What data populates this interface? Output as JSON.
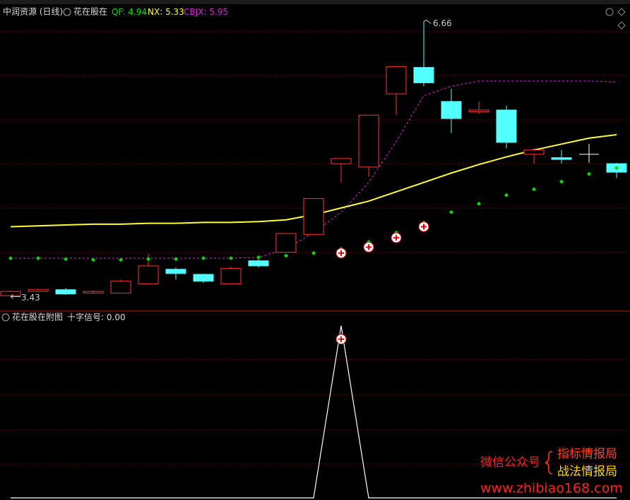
{
  "chart_data": [
    {
      "type": "candlestick",
      "title": "中润资源 (日线)",
      "subtitle": "花在股在",
      "open": [
        3.44,
        3.49,
        3.51,
        3.47,
        3.47,
        3.58,
        3.75,
        3.69,
        3.58,
        3.85,
        3.95,
        4.16,
        4.99,
        4.95,
        5.81,
        6.12,
        5.72,
        5.6,
        5.62,
        5.1,
        5.06,
        5.1,
        4.99
      ],
      "high": [
        3.5,
        3.52,
        3.53,
        3.5,
        3.63,
        3.93,
        3.77,
        3.7,
        3.78,
        3.87,
        4.17,
        4.58,
        5.05,
        5.56,
        6.13,
        6.66,
        5.87,
        5.72,
        5.67,
        5.17,
        5.15,
        5.22,
        5.0
      ],
      "low": [
        3.43,
        3.48,
        3.45,
        3.46,
        3.47,
        3.58,
        3.63,
        3.59,
        3.58,
        3.77,
        3.95,
        4.16,
        4.77,
        4.84,
        5.56,
        5.9,
        5.35,
        5.57,
        5.17,
        4.99,
        4.99,
        5.0,
        4.82
      ],
      "close": [
        3.49,
        3.51,
        3.46,
        3.49,
        3.61,
        3.79,
        3.7,
        3.61,
        3.76,
        3.79,
        4.17,
        4.58,
        5.05,
        5.56,
        6.13,
        5.94,
        5.52,
        5.62,
        5.24,
        5.15,
        5.04,
        5.1,
        4.89
      ],
      "up_color": "#ff3232",
      "down_color": "#54ffff",
      "flat_color": "#ffffff",
      "ylim": [
        3.26,
        6.68
      ],
      "series": [
        {
          "name": "QF",
          "color": "#00e000",
          "style": "dots",
          "values": [
            3.88,
            3.88,
            3.87,
            3.86,
            3.86,
            3.87,
            3.87,
            3.88,
            3.88,
            3.89,
            3.91,
            3.94,
            3.99,
            4.07,
            4.18,
            4.3,
            4.42,
            4.52,
            4.62,
            4.69,
            4.78,
            4.87,
            4.94
          ]
        },
        {
          "name": "NX",
          "color": "#ffff33",
          "style": "line",
          "values": [
            4.25,
            4.26,
            4.27,
            4.28,
            4.28,
            4.29,
            4.29,
            4.3,
            4.3,
            4.31,
            4.33,
            4.39,
            4.47,
            4.55,
            4.66,
            4.77,
            4.88,
            4.98,
            5.07,
            5.15,
            5.22,
            5.29,
            5.33
          ]
        },
        {
          "name": "CBJX",
          "color": "#e020e0",
          "style": "dashed",
          "values": [
            3.88,
            3.88,
            3.88,
            3.88,
            3.88,
            3.88,
            3.88,
            3.88,
            3.88,
            3.89,
            3.99,
            4.18,
            4.42,
            4.77,
            5.25,
            5.79,
            5.9,
            5.96,
            5.96,
            5.96,
            5.96,
            5.96,
            5.95
          ]
        }
      ],
      "markers": [
        null,
        null,
        null,
        null,
        null,
        null,
        null,
        null,
        null,
        null,
        null,
        null,
        3.94,
        4.01,
        4.12,
        4.25,
        null,
        null,
        null,
        null,
        null,
        null,
        null
      ]
    },
    {
      "type": "line",
      "title": "花在股在附图",
      "ylim": [
        0,
        1
      ],
      "series": [
        {
          "name": "十字信号",
          "color": "#ffffff",
          "values": [
            0,
            0,
            0,
            0,
            0,
            0,
            0,
            0,
            0,
            0,
            0,
            0,
            1,
            0,
            0,
            0,
            0,
            0,
            0,
            0,
            0,
            0,
            0
          ],
          "value_labels": [
            null,
            null,
            null,
            null,
            null,
            null,
            null,
            null,
            null,
            null,
            null,
            null,
            null,
            null,
            null,
            null,
            null,
            null,
            null,
            null,
            null,
            null,
            "0.00"
          ]
        }
      ],
      "markers": [
        null,
        null,
        null,
        null,
        null,
        null,
        null,
        null,
        null,
        null,
        null,
        null,
        1,
        null,
        null,
        null,
        null,
        null,
        null,
        null,
        null,
        null,
        null
      ]
    }
  ],
  "watermark": {
    "line1": "微信公众号",
    "brand1": "指标情报局",
    "brand2": "战法情报局",
    "url": "www.zhibiao168.com"
  }
}
